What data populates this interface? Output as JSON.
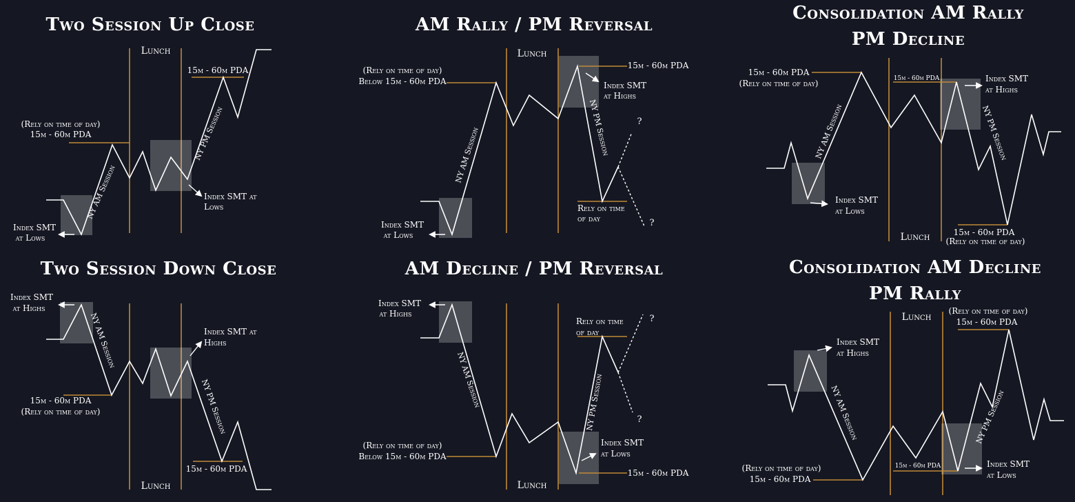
{
  "panels": {
    "p1": {
      "title": "Two Session Up Close",
      "lunch": "Lunch",
      "pda_1": "(Rely on time of day)",
      "pda_2": "15m - 60m PDA",
      "pda_top": "15m - 60m PDA",
      "smt_low_1": "Index SMT",
      "smt_low_2": "at Lows",
      "smt_low_right_1": "Index SMT at",
      "smt_low_right_2": "Lows",
      "am_session": "NY AM Session",
      "pm_session": "NY PM Session"
    },
    "p2": {
      "title": "AM Rally / PM Reversal",
      "lunch": "Lunch",
      "pda_1": "(Rely on time of day)",
      "pda_2": "Below 15m - 60m PDA",
      "pda_top": "15m - 60m PDA",
      "smt_high_1": "Index SMT",
      "smt_high_2": "at Highs",
      "smt_low_1": "Index SMT",
      "smt_low_2": "at Lows",
      "rely_1": "Rely on time",
      "rely_2": "of day",
      "am_session": "NY AM Session",
      "pm_session": "NY PM Session",
      "q_top": "?",
      "q_bottom": "?"
    },
    "p3": {
      "title_1": "Consolidation AM Rally",
      "title_2": "PM Decline",
      "lunch": "Lunch",
      "pda_1": "15m - 60m PDA",
      "pda_2": "(Rely on time of day)",
      "pda_small": "15m - 60m PDA",
      "smt_high_1": "Index SMT",
      "smt_high_2": "at Highs",
      "smt_low_1": "Index SMT",
      "smt_low_2": "at Lows",
      "pda_bottom_1": "15m - 60m PDA",
      "pda_bottom_2": "(Rely on time of day)",
      "am_session": "NY AM Session",
      "pm_session": "NY PM Session"
    },
    "p4": {
      "title": "Two Session Down Close",
      "lunch": "Lunch",
      "smt_high_1": "Index SMT",
      "smt_high_2": "at Highs",
      "smt_high_right_1": "Index SMT at",
      "smt_high_right_2": "Highs",
      "pda_1": "15m - 60m PDA",
      "pda_2": "(Rely on time of day)",
      "pda_bottom": "15m - 60m PDA",
      "am_session": "NY AM Session",
      "pm_session": "NY PM Session"
    },
    "p5": {
      "title": "AM Decline / PM Reversal",
      "lunch": "Lunch",
      "smt_high_1": "Index SMT",
      "smt_high_2": "at Highs",
      "rely_1": "Rely on time",
      "rely_2": "of day",
      "pda_1": "(Rely on time of day)",
      "pda_2": "Below 15m - 60m PDA",
      "smt_low_1": "Index SMT",
      "smt_low_2": "at Lows",
      "pda_bottom": "15m - 60m PDA",
      "am_session": "NY AM Session",
      "pm_session": "NY PM Session",
      "q_top": "?",
      "q_bottom": "?"
    },
    "p6": {
      "title_1": "Consolidation AM Decline",
      "title_2": "PM Rally",
      "lunch": "Lunch",
      "rely_top_1": "(Rely on time of day)",
      "rely_top_2": "15m - 60m PDA",
      "smt_high_1": "Index SMT",
      "smt_high_2": "at Highs",
      "pda_1": "(Rely on time of day)",
      "pda_2": "15m - 60m PDA",
      "pda_small": "15m - 60m PDA",
      "smt_low_1": "Index SMT",
      "smt_low_2": "at Lows",
      "am_session": "NY AM Session",
      "pm_session": "NY PM Session"
    }
  },
  "colors": {
    "background": "#151722",
    "line": "#ffffff",
    "accent": "#c08a36"
  }
}
